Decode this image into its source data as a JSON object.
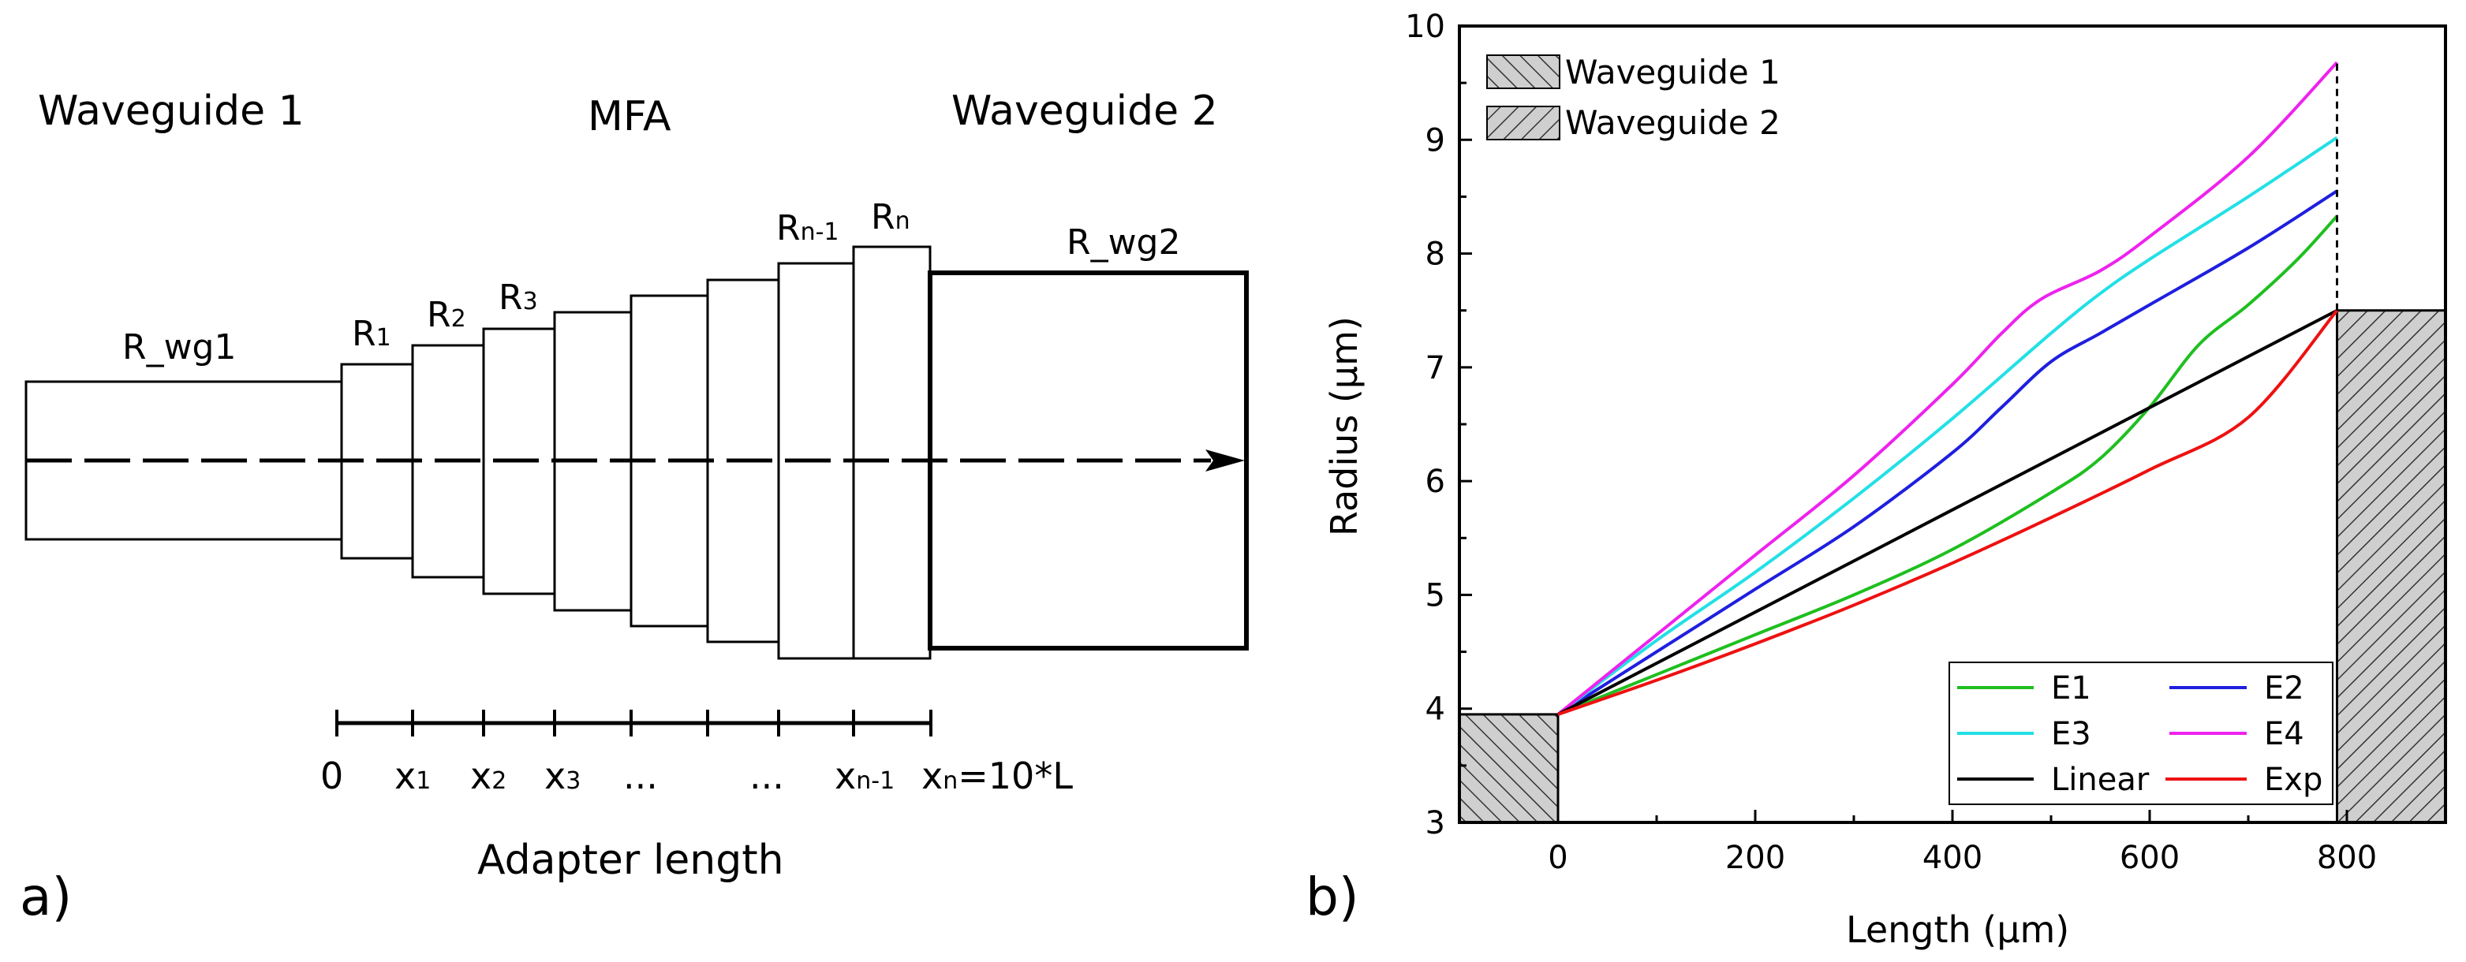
{
  "panel_a": {
    "panel_label": "a)",
    "waveguide1_label": "Waveguide 1",
    "mfa_label": "MFA",
    "waveguide2_label": "Waveguide 2",
    "r_wg1": "R_wg1",
    "r_wg2": "R_wg2",
    "radius_labels": [
      {
        "base": "R",
        "sub": "1"
      },
      {
        "base": "R",
        "sub": "2"
      },
      {
        "base": "R",
        "sub": "3"
      },
      {
        "base": "R",
        "sub": "n-1"
      },
      {
        "base": "R",
        "sub": "n"
      }
    ],
    "axis_labels": {
      "zero": "0",
      "x1": {
        "base": "x",
        "sub": "1"
      },
      "x2": {
        "base": "x",
        "sub": "2"
      },
      "x3": {
        "base": "x",
        "sub": "3"
      },
      "dots1": "...",
      "dots2": "...",
      "xn1": {
        "base": "x",
        "sub": "n-1"
      },
      "xn": {
        "base": "x",
        "sub": "n",
        "tail": "=10*L"
      }
    },
    "axis_title": "Adapter length"
  },
  "panel_b": {
    "panel_label": "b)",
    "legend_top": [
      "Waveguide 1",
      "Waveguide 2"
    ],
    "legend_bottom": [
      "E1",
      "E2",
      "E3",
      "E4",
      "Linear",
      "Exp"
    ]
  },
  "chart_data": {
    "type": "line",
    "title": "",
    "xlabel": "Length (μm)",
    "ylabel": "Radius (μm)",
    "xlim": [
      -100,
      900
    ],
    "ylim": [
      3,
      10
    ],
    "x_ticks": [
      0,
      200,
      400,
      600,
      800
    ],
    "y_ticks": [
      3,
      4,
      5,
      6,
      7,
      8,
      9,
      10
    ],
    "grid": false,
    "series": [
      {
        "name": "E1",
        "color": "#1fbf1f",
        "x": [
          0,
          100,
          200,
          300,
          400,
          500,
          550,
          600,
          650,
          700,
          750,
          790
        ],
        "y": [
          3.95,
          4.3,
          4.65,
          5.0,
          5.4,
          5.9,
          6.2,
          6.65,
          7.2,
          7.55,
          7.95,
          8.33
        ]
      },
      {
        "name": "E2",
        "color": "#1f1fdf",
        "x": [
          0,
          100,
          200,
          300,
          400,
          450,
          500,
          550,
          600,
          700,
          790
        ],
        "y": [
          3.95,
          4.5,
          5.05,
          5.6,
          6.25,
          6.65,
          7.05,
          7.3,
          7.55,
          8.05,
          8.55
        ]
      },
      {
        "name": "E3",
        "color": "#22e0e6",
        "x": [
          0,
          100,
          200,
          300,
          400,
          500,
          550,
          600,
          700,
          790
        ],
        "y": [
          3.95,
          4.6,
          5.2,
          5.85,
          6.55,
          7.3,
          7.65,
          7.95,
          8.5,
          9.02
        ]
      },
      {
        "name": "E4",
        "color": "#ee22ee",
        "x": [
          0,
          100,
          200,
          300,
          400,
          450,
          490,
          550,
          600,
          700,
          790
        ],
        "y": [
          3.95,
          4.65,
          5.35,
          6.05,
          6.85,
          7.3,
          7.6,
          7.85,
          8.15,
          8.85,
          9.68
        ]
      },
      {
        "name": "Linear",
        "color": "#000000",
        "x": [
          0,
          790
        ],
        "y": [
          3.95,
          7.5
        ]
      },
      {
        "name": "Exp",
        "color": "#ee1111",
        "x": [
          0,
          100,
          200,
          300,
          400,
          500,
          600,
          700,
          790
        ],
        "y": [
          3.95,
          4.25,
          4.57,
          4.91,
          5.28,
          5.68,
          6.1,
          6.56,
          7.5
        ]
      }
    ],
    "regions": [
      {
        "name": "Waveguide 1",
        "x": [
          -100,
          0
        ],
        "y": [
          3,
          3.95
        ]
      },
      {
        "name": "Waveguide 2",
        "x": [
          790,
          900
        ],
        "y": [
          3,
          7.5
        ]
      }
    ],
    "annotations": [
      {
        "type": "dashed-vertical",
        "x": 790,
        "y": [
          7.5,
          9.68
        ]
      }
    ]
  }
}
